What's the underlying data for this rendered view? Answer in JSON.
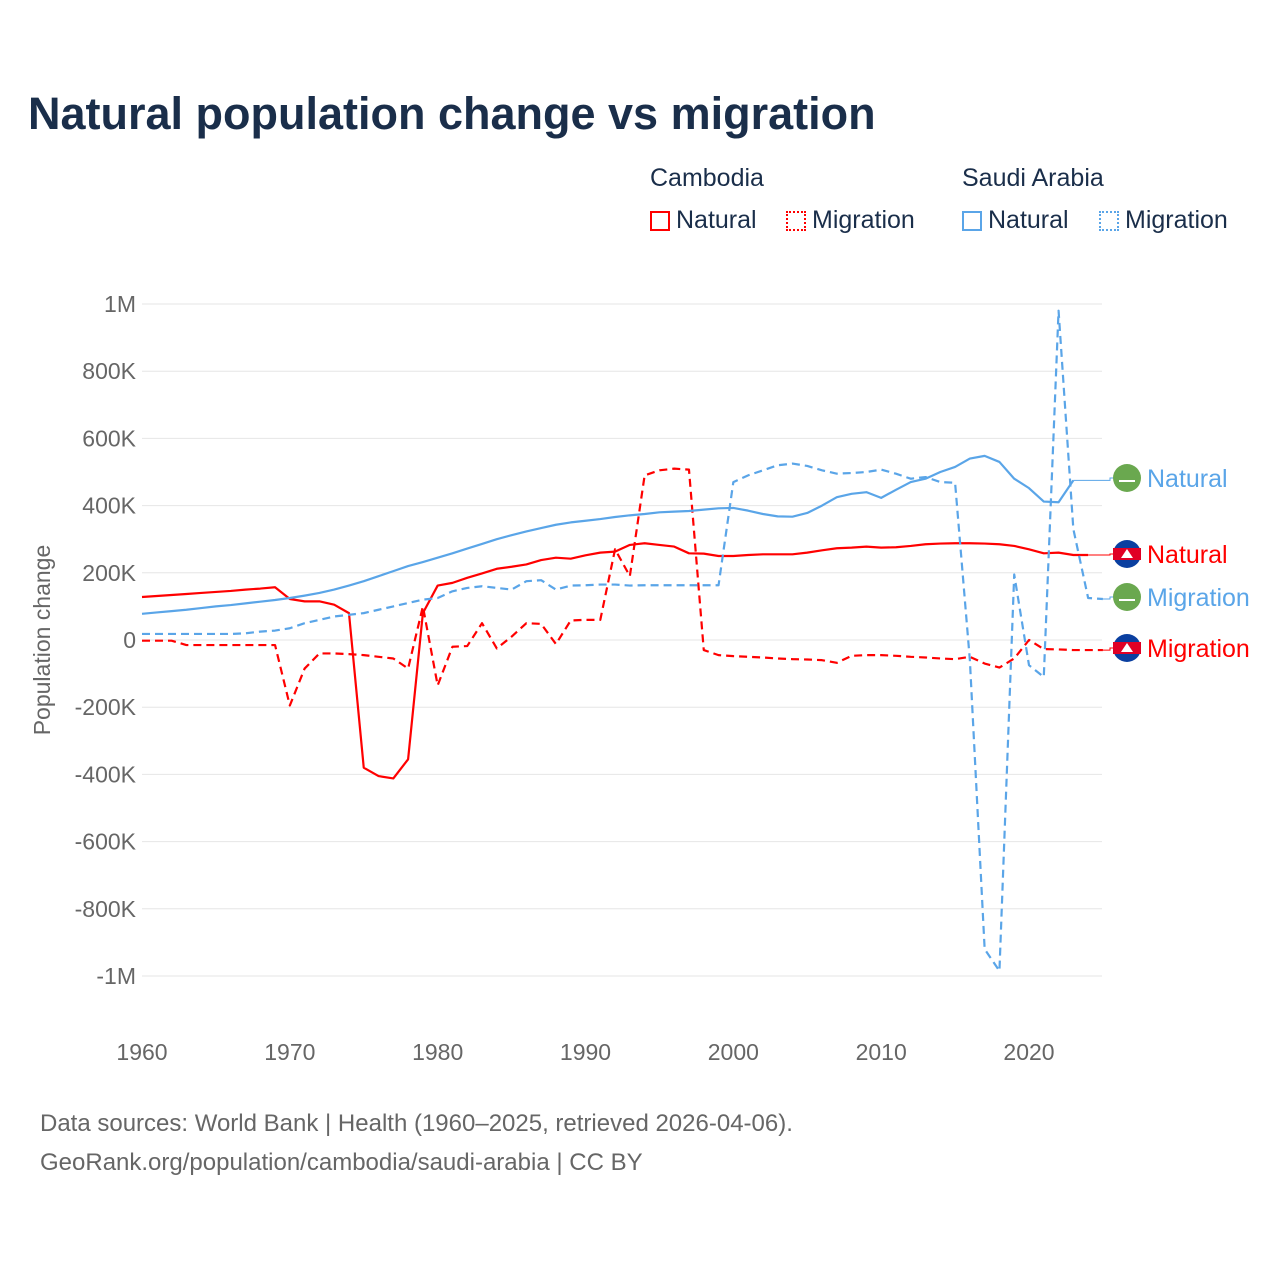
{
  "title": "Natural population change vs migration",
  "legend": {
    "groups": [
      {
        "name": "Cambodia",
        "items": [
          {
            "label": "Natural",
            "color": "#ff0000",
            "style": "solid"
          },
          {
            "label": "Migration",
            "color": "#ff0000",
            "style": "dotted"
          }
        ]
      },
      {
        "name": "Saudi Arabia",
        "items": [
          {
            "label": "Natural",
            "color": "#5aa5e8",
            "style": "solid"
          },
          {
            "label": "Migration",
            "color": "#5aa5e8",
            "style": "dotted"
          }
        ]
      }
    ]
  },
  "footer": {
    "line1": "Data sources: World Bank | Health (1960–2025, retrieved 2026-04-06).",
    "line2": "GeoRank.org/population/cambodia/saudi-arabia | CC BY"
  },
  "chart_data": {
    "type": "line",
    "title": "Natural population change vs migration",
    "xlabel": "",
    "ylabel": "Population change",
    "xlim": [
      1960,
      2025
    ],
    "ylim": [
      -1100000,
      1000000
    ],
    "xticks": [
      1960,
      1970,
      1980,
      1990,
      2000,
      2010,
      2020
    ],
    "xtick_labels": [
      "1960",
      "1970",
      "1980",
      "1990",
      "2000",
      "2010",
      "2020"
    ],
    "yticks": [
      1000000,
      800000,
      600000,
      400000,
      200000,
      0,
      -200000,
      -400000,
      -600000,
      -800000,
      -1000000
    ],
    "ytick_labels": [
      "1M",
      "800K",
      "600K",
      "400K",
      "200K",
      "0",
      "-200K",
      "-400K",
      "-600K",
      "-800K",
      "-1M"
    ],
    "grid": true,
    "series": [
      {
        "name": "Cambodia Natural",
        "end_label": "Natural",
        "color": "#ff0000",
        "dash": false,
        "x0": 1960,
        "values_k": [
          128,
          131,
          134,
          137,
          140,
          143,
          146,
          150,
          153,
          157,
          122,
          115,
          115,
          105,
          80,
          -380,
          -405,
          -412,
          -355,
          80,
          162,
          170,
          185,
          198,
          212,
          218,
          225,
          238,
          245,
          242,
          252,
          260,
          263,
          283,
          288,
          283,
          278,
          258,
          257,
          250,
          250,
          253,
          255,
          255,
          255,
          260,
          267,
          273,
          275,
          278,
          275,
          276,
          280,
          285,
          287,
          288,
          288,
          287,
          285,
          280,
          270,
          258,
          260,
          253,
          253
        ]
      },
      {
        "name": "Cambodia Migration",
        "end_label": "Migration",
        "color": "#ff0000",
        "dash": true,
        "x0": 1960,
        "values_k": [
          -2,
          -2,
          -2,
          -15,
          -15,
          -15,
          -15,
          -15,
          -15,
          -15,
          -195,
          -85,
          -40,
          -40,
          -42,
          -45,
          -50,
          -55,
          -85,
          100,
          -135,
          -20,
          -18,
          50,
          -25,
          10,
          50,
          48,
          -12,
          58,
          60,
          60,
          270,
          190,
          490,
          505,
          510,
          507,
          -30,
          -45,
          -48,
          -50,
          -52,
          -55,
          -57,
          -58,
          -60,
          -68,
          -47,
          -45,
          -45,
          -47,
          -50,
          -52,
          -55,
          -57,
          -50,
          -70,
          -82,
          -55,
          0,
          -27,
          -28,
          -30,
          -30,
          -30
        ]
      },
      {
        "name": "Saudi Arabia Natural",
        "end_label": "Natural",
        "color": "#5aa5e8",
        "dash": false,
        "x0": 1960,
        "values_k": [
          78,
          82,
          86,
          90,
          95,
          100,
          104,
          109,
          114,
          119,
          125,
          132,
          140,
          150,
          162,
          175,
          190,
          205,
          220,
          232,
          245,
          258,
          272,
          286,
          300,
          312,
          323,
          333,
          343,
          350,
          355,
          360,
          366,
          371,
          375,
          380,
          382,
          384,
          388,
          392,
          393,
          385,
          375,
          368,
          367,
          378,
          400,
          425,
          435,
          440,
          423,
          447,
          470,
          480,
          500,
          515,
          540,
          548,
          530,
          480,
          452,
          412,
          410,
          475
        ]
      },
      {
        "name": "Saudi Arabia Migration",
        "end_label": "Migration",
        "color": "#5aa5e8",
        "dash": true,
        "x0": 1960,
        "values_k": [
          18,
          18,
          18,
          18,
          18,
          18,
          18,
          20,
          25,
          28,
          35,
          50,
          60,
          70,
          75,
          80,
          90,
          100,
          110,
          120,
          125,
          145,
          155,
          160,
          155,
          150,
          175,
          178,
          150,
          162,
          163,
          165,
          165,
          162,
          163,
          163,
          163,
          163,
          163,
          163,
          470,
          490,
          505,
          520,
          525,
          518,
          505,
          495,
          497,
          500,
          507,
          495,
          480,
          485,
          470,
          468,
          -60,
          -920,
          -985,
          195,
          -75,
          -110,
          980,
          330,
          125,
          122
        ]
      }
    ],
    "end_labels_order": [
      "Saudi Arabia Natural",
      "Cambodia Natural",
      "Saudi Arabia Migration",
      "Cambodia Migration"
    ]
  }
}
